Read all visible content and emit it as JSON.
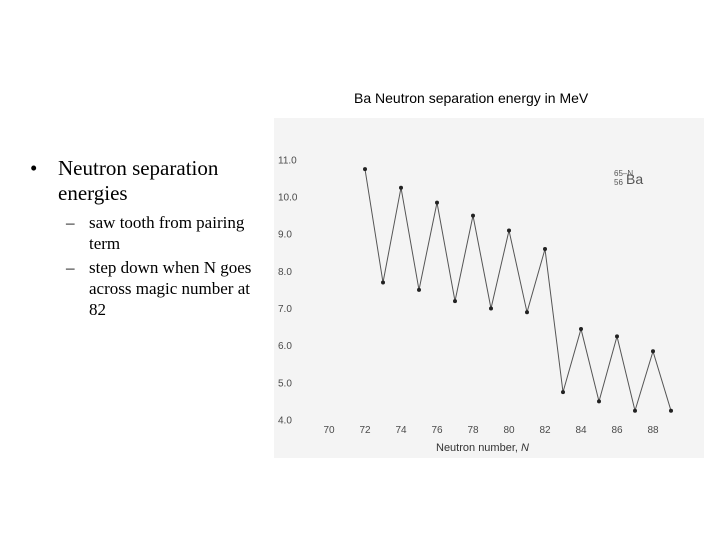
{
  "bullets": {
    "main": "Neutron separation energies",
    "bullet_glyph": "•",
    "dash_glyph": "–",
    "subs": [
      "saw tooth from pairing term",
      "step down when N goes across magic number at 82"
    ]
  },
  "chart_data": {
    "type": "line",
    "title": "Ba Neutron separation energy in MeV",
    "xlabel": "Neutron number, ",
    "xlabel_var": "N",
    "ylabel": "",
    "x_ticks": [
      70,
      72,
      74,
      76,
      78,
      80,
      82,
      84,
      86,
      88
    ],
    "y_ticks": [
      "4.0",
      "5.0",
      "6.0",
      "7.0",
      "8.0",
      "9.0",
      "10.0",
      "11.0"
    ],
    "xlim": [
      69,
      90
    ],
    "ylim": [
      4.0,
      11.4
    ],
    "series": [
      {
        "x": [
          72,
          73,
          74,
          75,
          76,
          77,
          78,
          79,
          80,
          81,
          82,
          83,
          84,
          85,
          86,
          87,
          88,
          89
        ],
        "values": [
          10.75,
          7.7,
          10.25,
          7.5,
          9.85,
          7.2,
          9.5,
          7.0,
          9.1,
          6.9,
          8.6,
          4.75,
          6.45,
          4.5,
          6.25,
          4.25,
          5.85,
          4.25
        ]
      }
    ],
    "grid": false,
    "inset_label": {
      "mass_number": "65–N",
      "atomic_number": "56",
      "symbol": "Ba"
    },
    "colors": {
      "line": "#555555",
      "marker": "#222222",
      "background": "#f4f4f4",
      "text": "#4a4a4a"
    }
  }
}
